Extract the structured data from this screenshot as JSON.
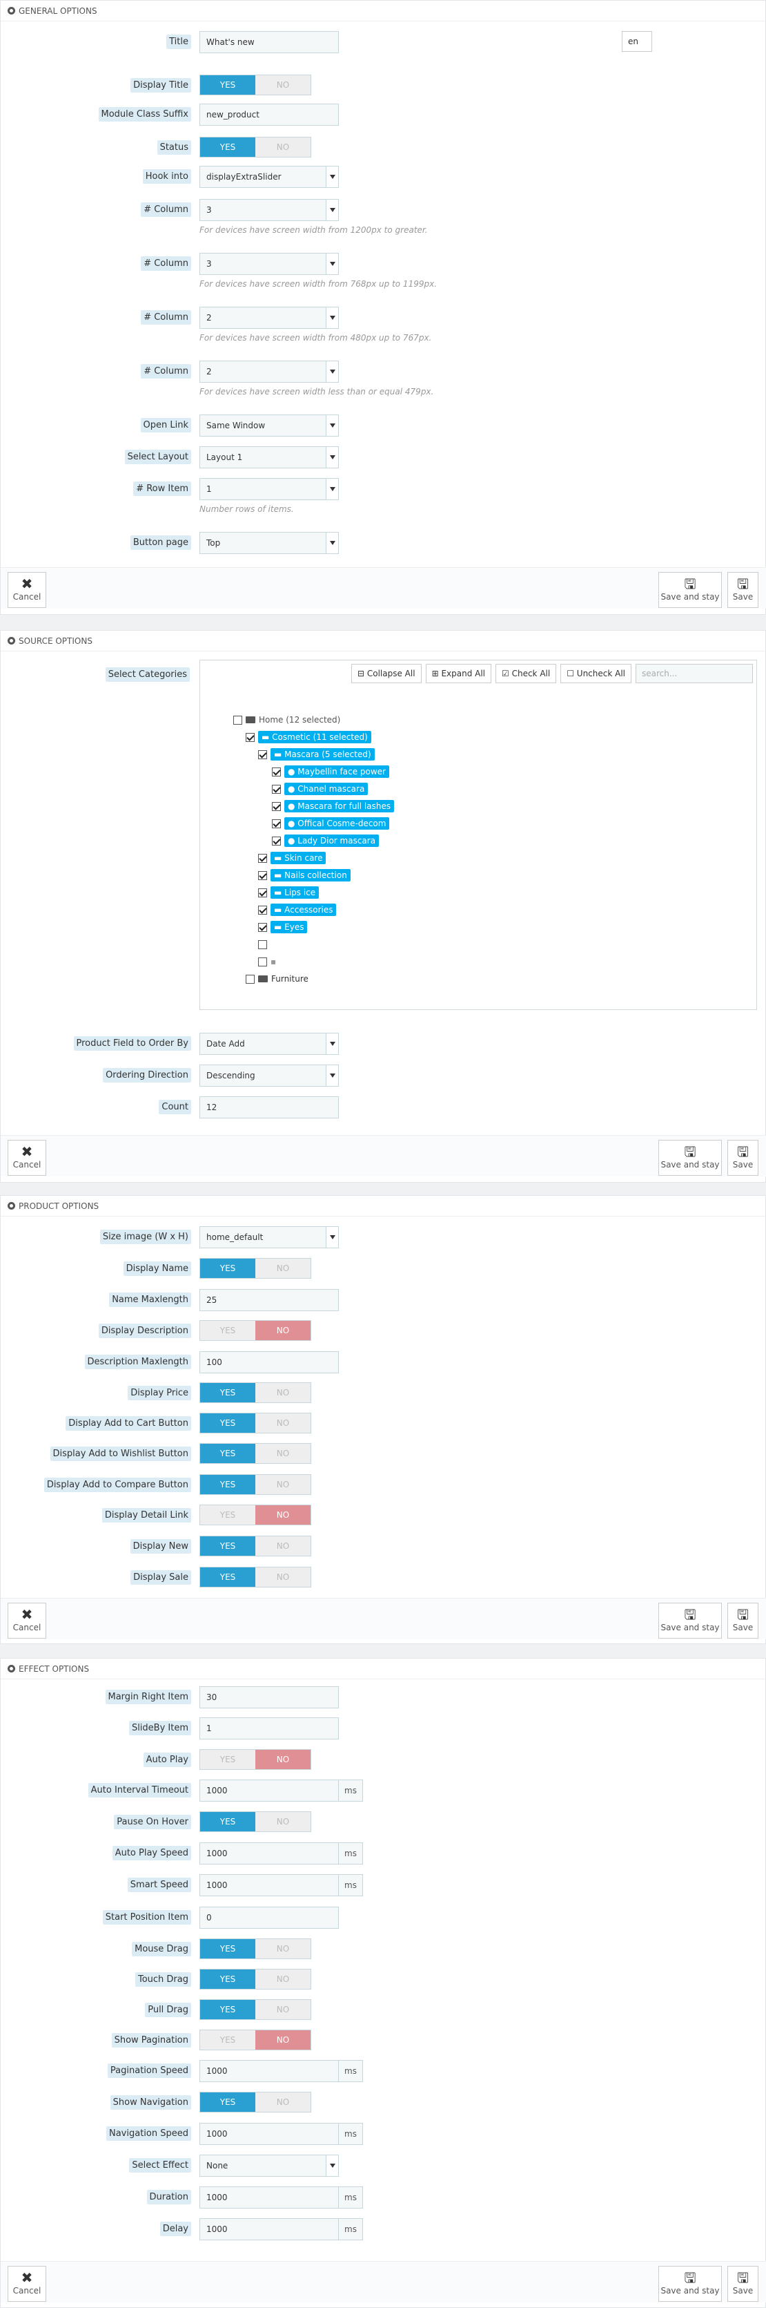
{
  "general": {
    "heading": "GENERAL OPTIONS",
    "lang": "en",
    "title_label": "Title",
    "title_value": "What's new",
    "display_title_label": "Display Title",
    "suffix_label": "Module Class Suffix",
    "suffix_value": "new_product",
    "status_label": "Status",
    "hook_label": "Hook into",
    "hook_value": "displayExtraSlider",
    "col_label": "# Column",
    "col1_value": "3",
    "col1_help": "For devices have screen width from 1200px to greater.",
    "col2_value": "3",
    "col2_help": "For devices have screen width from 768px up to 1199px.",
    "col3_value": "2",
    "col3_help": "For devices have screen width from 480px up to 767px.",
    "col4_value": "2",
    "col4_help": "For devices have screen width less than or equal 479px.",
    "openlink_label": "Open Link",
    "openlink_value": "Same Window",
    "layout_label": "Select Layout",
    "layout_value": "Layout 1",
    "rowitem_label": "# Row Item",
    "rowitem_value": "1",
    "rowitem_help": "Number rows of items.",
    "buttonpage_label": "Button page",
    "buttonpage_value": "Top"
  },
  "toggle": {
    "yes": "YES",
    "no": "NO"
  },
  "footer": {
    "cancel": "Cancel",
    "save_stay": "Save and stay",
    "save": "Save"
  },
  "source": {
    "heading": "SOURCE OPTIONS",
    "cat_label": "Select Categories",
    "collapse": "Collapse All",
    "expand": "Expand All",
    "check": "Check All",
    "uncheck": "Uncheck All",
    "search_ph": "search...",
    "home": "Home (12 selected)",
    "cosmetic": "Cosmetic (11 selected)",
    "mascara": "Mascara (5 selected)",
    "m1": "Maybellin face power",
    "m2": "Chanel mascara",
    "m3": "Mascara for full lashes",
    "m4": "Offical Cosme-decom",
    "m5": "Lady Dior mascara",
    "skin": "Skin care",
    "nails": "Nails collection",
    "lips": "Lips ice",
    "acc": "Accessories",
    "eyes": "Eyes",
    "empty_item": "",
    "furniture": "Furniture",
    "order_label": "Product Field to Order By",
    "order_value": "Date Add",
    "dir_label": "Ordering Direction",
    "dir_value": "Descending",
    "count_label": "Count",
    "count_value": "12"
  },
  "product": {
    "heading": "PRODUCT OPTIONS",
    "size_label": "Size image (W x H)",
    "size_value": "home_default",
    "dname_label": "Display Name",
    "nmax_label": "Name Maxlength",
    "nmax_value": "25",
    "ddesc_label": "Display Description",
    "dmax_label": "Description Maxlength",
    "dmax_value": "100",
    "dprice_label": "Display Price",
    "dcart_label": "Display Add to Cart Button",
    "dwish_label": "Display Add to Wishlist Button",
    "dcomp_label": "Display Add to Compare Button",
    "ddetail_label": "Display Detail Link",
    "dnew_label": "Display New",
    "dsale_label": "Display Sale"
  },
  "effect": {
    "heading": "EFFECT OPTIONS",
    "ms": "ms",
    "margin_label": "Margin Right Item",
    "margin_value": "30",
    "slideby_label": "SlideBy Item",
    "slideby_value": "1",
    "autoplay_label": "Auto Play",
    "interval_label": "Auto Interval Timeout",
    "interval_value": "1000",
    "pause_label": "Pause On Hover",
    "apspeed_label": "Auto Play Speed",
    "apspeed_value": "1000",
    "smart_label": "Smart Speed",
    "smart_value": "1000",
    "startpos_label": "Start Position Item",
    "startpos_value": "0",
    "mouse_label": "Mouse Drag",
    "touch_label": "Touch Drag",
    "pull_label": "Pull Drag",
    "showpag_label": "Show Pagination",
    "pagspeed_label": "Pagination Speed",
    "pagspeed_value": "1000",
    "shownav_label": "Show Navigation",
    "navspeed_label": "Navigation Speed",
    "navspeed_value": "1000",
    "seleff_label": "Select Effect",
    "seleff_value": "None",
    "duration_label": "Duration",
    "duration_value": "1000",
    "delay_label": "Delay",
    "delay_value": "1000"
  }
}
